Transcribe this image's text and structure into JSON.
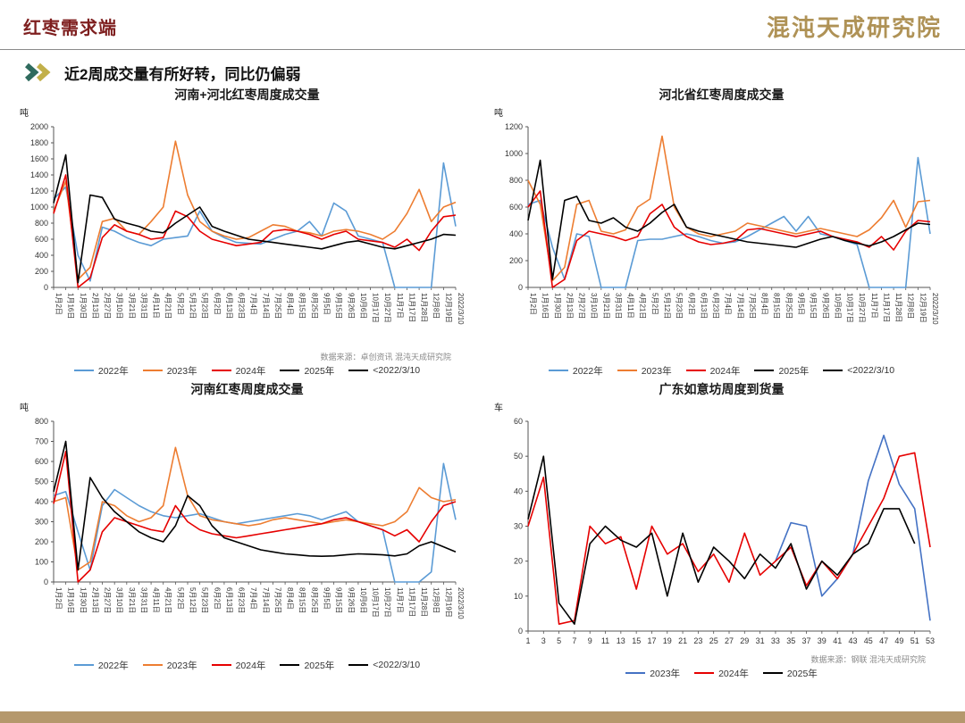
{
  "page": {
    "header_title": "红枣需求端",
    "logo_text": "混沌天成研究院",
    "subtitle": "近2周成交量有所好转，同比仍偏弱"
  },
  "colors": {
    "accent_title": "#7e1f1f",
    "logo_gold": "#ab8d4d",
    "bottom_bar": "#b5986c",
    "blue_2022": "#5B9BD5",
    "orange_2023": "#ED7D31",
    "red_2024": "#E60000",
    "black_2025": "#000000",
    "blue_royal_2023": "#4472C4"
  },
  "chart_data": [
    {
      "type": "line",
      "title": "河南+河北红枣周度成交量",
      "unit": "吨",
      "source": "数据来源：卓创资讯   混沌天成研究院",
      "ylim": [
        0,
        2000
      ],
      "ytick": 200,
      "grid": false,
      "legend_position": "bottom",
      "rotate_xlabels": true,
      "categories": [
        "1月2日",
        "1月16日",
        "1月30日",
        "2月13日",
        "2月27日",
        "3月10日",
        "3月21日",
        "3月31日",
        "4月11日",
        "4月21日",
        "5月2日",
        "5月12日",
        "5月23日",
        "6月2日",
        "6月13日",
        "6月23日",
        "7月4日",
        "7月14日",
        "7月25日",
        "8月4日",
        "8月15日",
        "8月25日",
        "9月5日",
        "9月15日",
        "9月26日",
        "10月6日",
        "10月17日",
        "10月27日",
        "11月7日",
        "11月17日",
        "11月28日",
        "12月8日",
        "12月19日",
        "2022/3/10"
      ],
      "series": [
        {
          "name": "2022年",
          "color": "#5B9BD5",
          "values": [
            1100,
            1250,
            400,
            80,
            750,
            700,
            620,
            560,
            520,
            600,
            620,
            640,
            950,
            700,
            620,
            560,
            550,
            540,
            600,
            660,
            700,
            820,
            640,
            1050,
            950,
            640,
            600,
            560,
            0,
            0,
            0,
            0,
            1550,
            760
          ]
        },
        {
          "name": "2023年",
          "color": "#ED7D31",
          "values": [
            950,
            1320,
            100,
            250,
            820,
            860,
            700,
            660,
            820,
            1000,
            1820,
            1150,
            820,
            700,
            640,
            600,
            620,
            700,
            780,
            760,
            700,
            680,
            640,
            700,
            720,
            700,
            660,
            600,
            700,
            920,
            1220,
            820,
            1000,
            1060
          ]
        },
        {
          "name": "2024年",
          "color": "#E60000",
          "values": [
            920,
            1400,
            0,
            120,
            620,
            780,
            700,
            660,
            600,
            620,
            950,
            880,
            700,
            600,
            560,
            520,
            540,
            560,
            700,
            720,
            700,
            660,
            600,
            660,
            700,
            600,
            580,
            560,
            500,
            600,
            460,
            700,
            880,
            900
          ]
        },
        {
          "name": "2025年",
          "color": "#000000",
          "values": [
            1050,
            1650,
            60,
            1150,
            1120,
            850,
            800,
            760,
            700,
            680,
            800,
            900,
            1000,
            760,
            700,
            650,
            600,
            580,
            560,
            540,
            520,
            500,
            480,
            520,
            560,
            580,
            540,
            500,
            480,
            520,
            560,
            600,
            660,
            650
          ]
        }
      ],
      "legend": [
        {
          "label": "2022年",
          "color": "#5B9BD5"
        },
        {
          "label": "2023年",
          "color": "#ED7D31"
        },
        {
          "label": "2024年",
          "color": "#E60000"
        },
        {
          "label": "2025年",
          "color": "#000000"
        },
        {
          "label": "<2022/3/10",
          "color": "#000000"
        }
      ]
    },
    {
      "type": "line",
      "title": "河北省红枣周度成交量",
      "unit": "吨",
      "source": "",
      "ylim": [
        0,
        1200
      ],
      "ytick": 200,
      "grid": false,
      "legend_position": "bottom",
      "rotate_xlabels": true,
      "categories": [
        "1月2日",
        "1月16日",
        "1月30日",
        "2月13日",
        "2月27日",
        "3月10日",
        "3月21日",
        "3月31日",
        "4月11日",
        "4月21日",
        "5月2日",
        "5月12日",
        "5月23日",
        "6月2日",
        "6月13日",
        "6月23日",
        "7月4日",
        "7月14日",
        "7月25日",
        "8月4日",
        "8月15日",
        "8月25日",
        "9月5日",
        "9月15日",
        "9月26日",
        "10月6日",
        "10月17日",
        "10月27日",
        "11月7日",
        "11月17日",
        "11月28日",
        "12月8日",
        "12月19日",
        "2022/3/10"
      ],
      "series": [
        {
          "name": "2022年",
          "color": "#5B9BD5",
          "values": [
            620,
            650,
            300,
            60,
            400,
            380,
            0,
            0,
            0,
            350,
            360,
            360,
            380,
            400,
            380,
            350,
            330,
            340,
            380,
            430,
            480,
            530,
            420,
            530,
            400,
            380,
            350,
            320,
            0,
            0,
            0,
            0,
            970,
            400
          ]
        },
        {
          "name": "2023年",
          "color": "#ED7D31",
          "values": [
            800,
            620,
            50,
            150,
            620,
            650,
            420,
            400,
            430,
            600,
            660,
            1130,
            600,
            450,
            400,
            380,
            400,
            420,
            480,
            460,
            440,
            420,
            400,
            420,
            440,
            420,
            400,
            380,
            430,
            520,
            650,
            450,
            640,
            650
          ]
        },
        {
          "name": "2024年",
          "color": "#E60000",
          "values": [
            600,
            720,
            0,
            60,
            350,
            420,
            400,
            380,
            350,
            380,
            550,
            620,
            450,
            380,
            340,
            320,
            330,
            350,
            430,
            440,
            420,
            400,
            380,
            400,
            420,
            380,
            360,
            340,
            300,
            380,
            280,
            420,
            500,
            490
          ]
        },
        {
          "name": "2025年",
          "color": "#000000",
          "values": [
            500,
            950,
            60,
            650,
            680,
            500,
            480,
            520,
            450,
            420,
            480,
            560,
            620,
            450,
            420,
            400,
            380,
            360,
            340,
            330,
            320,
            310,
            300,
            330,
            360,
            380,
            350,
            330,
            310,
            340,
            380,
            430,
            480,
            470
          ]
        }
      ],
      "legend": [
        {
          "label": "2022年",
          "color": "#5B9BD5"
        },
        {
          "label": "2023年",
          "color": "#ED7D31"
        },
        {
          "label": "2024年",
          "color": "#E60000"
        },
        {
          "label": "2025年",
          "color": "#000000"
        },
        {
          "label": "<2022/3/10",
          "color": "#000000"
        }
      ]
    },
    {
      "type": "line",
      "title": "河南红枣周度成交量",
      "unit": "吨",
      "source": "",
      "ylim": [
        0,
        800
      ],
      "ytick": 100,
      "grid": false,
      "legend_position": "bottom",
      "rotate_xlabels": true,
      "categories": [
        "1月2日",
        "1月16日",
        "1月30日",
        "2月13日",
        "2月27日",
        "3月10日",
        "3月21日",
        "3月31日",
        "4月11日",
        "4月21日",
        "5月2日",
        "5月12日",
        "5月23日",
        "6月2日",
        "6月13日",
        "6月23日",
        "7月4日",
        "7月14日",
        "7月25日",
        "8月4日",
        "8月15日",
        "8月25日",
        "9月5日",
        "9月15日",
        "9月26日",
        "10月6日",
        "10月17日",
        "10月27日",
        "11月7日",
        "11月17日",
        "11月28日",
        "12月8日",
        "12月19日",
        "2022/3/10"
      ],
      "series": [
        {
          "name": "2022年",
          "color": "#5B9BD5",
          "values": [
            430,
            450,
            250,
            60,
            380,
            460,
            420,
            380,
            350,
            330,
            320,
            330,
            340,
            320,
            300,
            290,
            300,
            310,
            320,
            330,
            340,
            330,
            310,
            330,
            350,
            300,
            280,
            260,
            0,
            0,
            0,
            50,
            590,
            310
          ]
        },
        {
          "name": "2023年",
          "color": "#ED7D31",
          "values": [
            400,
            420,
            60,
            100,
            400,
            380,
            330,
            300,
            320,
            380,
            670,
            430,
            330,
            310,
            300,
            290,
            280,
            290,
            310,
            320,
            310,
            300,
            290,
            300,
            310,
            300,
            290,
            280,
            300,
            350,
            470,
            420,
            400,
            410
          ]
        },
        {
          "name": "2024年",
          "color": "#E60000",
          "values": [
            390,
            650,
            0,
            60,
            250,
            320,
            300,
            280,
            260,
            250,
            380,
            300,
            260,
            240,
            230,
            220,
            230,
            240,
            250,
            260,
            270,
            280,
            290,
            310,
            320,
            300,
            280,
            260,
            230,
            260,
            200,
            300,
            380,
            400
          ]
        },
        {
          "name": "2025年",
          "color": "#000000",
          "values": [
            450,
            700,
            60,
            520,
            420,
            350,
            300,
            250,
            220,
            200,
            280,
            430,
            380,
            280,
            220,
            200,
            180,
            160,
            150,
            140,
            135,
            130,
            128,
            130,
            135,
            140,
            138,
            135,
            130,
            140,
            180,
            200,
            175,
            150
          ]
        }
      ],
      "legend": [
        {
          "label": "2022年",
          "color": "#5B9BD5"
        },
        {
          "label": "2023年",
          "color": "#ED7D31"
        },
        {
          "label": "2024年",
          "color": "#E60000"
        },
        {
          "label": "2025年",
          "color": "#000000"
        },
        {
          "label": "<2022/3/10",
          "color": "#000000"
        }
      ]
    },
    {
      "type": "line",
      "title": "广东如意坊周度到货量",
      "unit": "车",
      "source": "数据来源：钢联   混沌天成研究院",
      "ylim": [
        0,
        60
      ],
      "ytick": 10,
      "grid": false,
      "legend_position": "bottom",
      "rotate_xlabels": false,
      "categories": [
        "1",
        "3",
        "5",
        "7",
        "9",
        "11",
        "13",
        "15",
        "17",
        "19",
        "21",
        "23",
        "25",
        "27",
        "29",
        "31",
        "33",
        "35",
        "37",
        "39",
        "41",
        "43",
        "45",
        "47",
        "49",
        "51",
        "53"
      ],
      "series": [
        {
          "name": "2023年",
          "color": "#4472C4",
          "values": [
            null,
            null,
            null,
            null,
            null,
            null,
            null,
            null,
            null,
            null,
            null,
            null,
            null,
            null,
            null,
            null,
            20,
            31,
            30,
            10,
            15,
            22,
            43,
            56,
            42,
            35,
            3
          ]
        },
        {
          "name": "2024年",
          "color": "#E60000",
          "values": [
            30,
            44,
            2,
            3,
            30,
            25,
            27,
            12,
            30,
            22,
            25,
            17,
            22,
            14,
            28,
            16,
            20,
            24,
            13,
            20,
            15,
            22,
            30,
            38,
            50,
            51,
            24
          ]
        },
        {
          "name": "2025年",
          "color": "#000000",
          "values": [
            32,
            50,
            8,
            2,
            25,
            30,
            26,
            24,
            28,
            10,
            28,
            14,
            24,
            20,
            15,
            22,
            18,
            25,
            12,
            20,
            16,
            22,
            25,
            35,
            35,
            25,
            null
          ]
        }
      ],
      "legend": [
        {
          "label": "2023年",
          "color": "#4472C4"
        },
        {
          "label": "2024年",
          "color": "#E60000"
        },
        {
          "label": "2025年",
          "color": "#000000"
        }
      ]
    }
  ]
}
